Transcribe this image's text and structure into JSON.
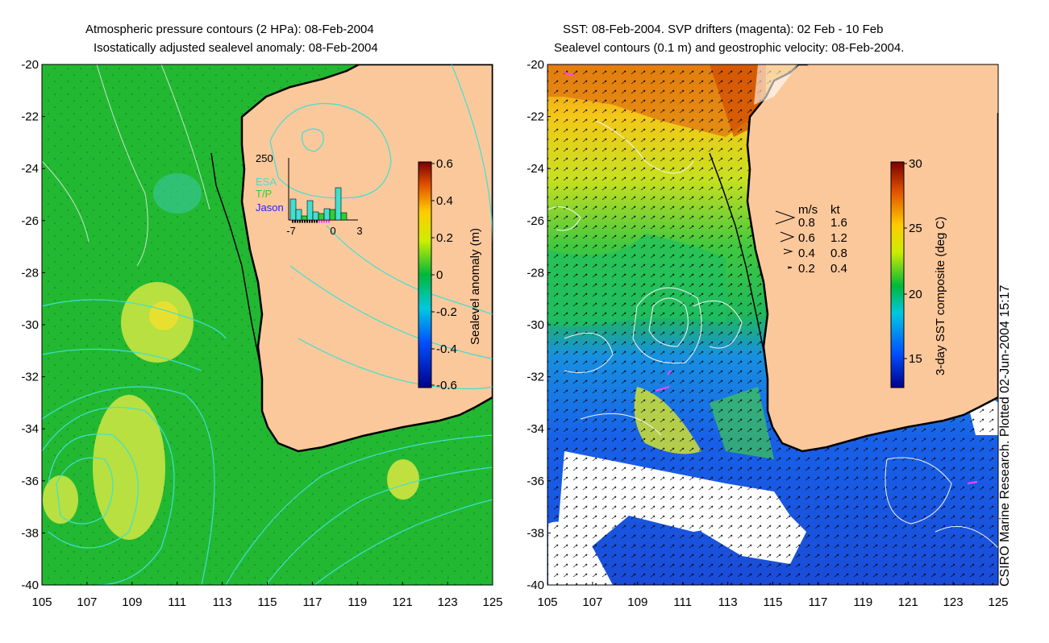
{
  "left_panel": {
    "title_line1": "Atmospheric pressure contours (2 HPa): 08-Feb-2004",
    "title_line2": "Isostatically adjusted sealevel anomaly: 08-Feb-2004",
    "colorbar_label": "Sealevel anomaly (m)",
    "colorbar_ticks": [
      "0.6",
      "0.4",
      "0.2",
      "0",
      "-0.2",
      "-0.4",
      "-0.6"
    ],
    "inset": {
      "y_max": "250",
      "legend": [
        "ESA",
        "T/P",
        "Jason"
      ],
      "x_ticks": [
        "-7",
        "0",
        "3"
      ],
      "colors": {
        "ESA": "#40e0d0",
        "T/P": "#33cc33",
        "Jason": "#2222ff"
      }
    }
  },
  "right_panel": {
    "title_line1": "SST: 08-Feb-2004. SVP drifters (magenta): 02 Feb - 10 Feb",
    "title_line2": "Sealevel contours (0.1 m) and geostrophic velocity: 08-Feb-2004.",
    "colorbar_label": "3-day SST composite (deg C)",
    "colorbar_ticks": [
      "30",
      "25",
      "20",
      "15"
    ],
    "velocity_legend": {
      "header": [
        "m/s",
        "kt"
      ],
      "rows": [
        [
          "0.8",
          "1.6"
        ],
        [
          "0.6",
          "1.2"
        ],
        [
          "0.4",
          "0.8"
        ],
        [
          "0.2",
          "0.4"
        ]
      ]
    }
  },
  "axes": {
    "lat_ticks": [
      "-20",
      "-22",
      "-24",
      "-26",
      "-28",
      "-30",
      "-32",
      "-34",
      "-36",
      "-38",
      "-40"
    ],
    "lon_ticks": [
      "105",
      "107",
      "109",
      "111",
      "113",
      "115",
      "117",
      "119",
      "121",
      "123",
      "125"
    ]
  },
  "footer_credit": "CSIRO Marine Research. Plotted 02-Jun-2004 15:17",
  "colors": {
    "land": "#fbc89c",
    "ocean_green": "#22b832",
    "contour_cyan": "#40e0d0"
  }
}
